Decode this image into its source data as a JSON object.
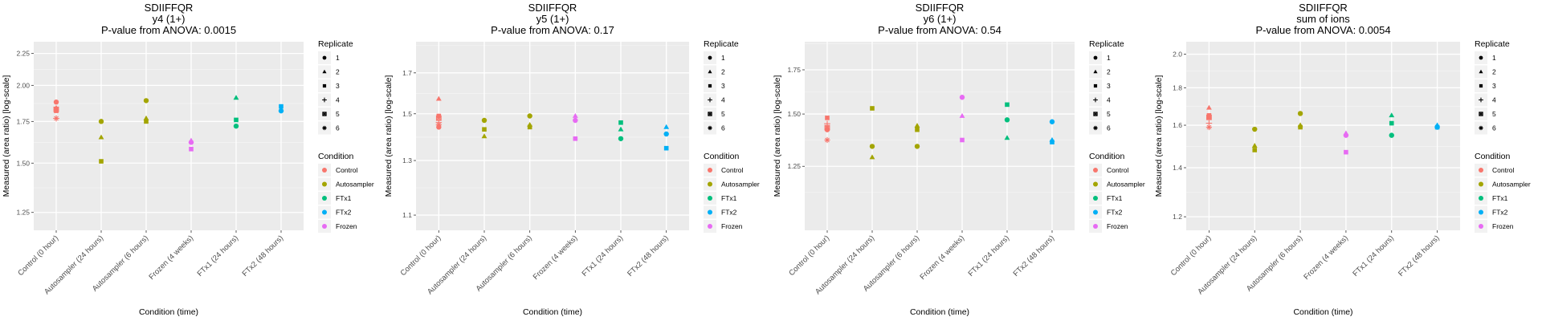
{
  "chart_data": [
    {
      "type": "scatter",
      "title": "SDIIFFQR",
      "subtitle": "y4 (1+)",
      "pvalue_text": "P-value from ANOVA: 0.0015",
      "xlabel": "Condition (time)",
      "ylabel": "Measured (area ratio) [log-scale]",
      "yscale": "log",
      "ylim": [
        1.17,
        2.35
      ],
      "yticks": [
        1.25,
        1.5,
        1.75,
        2.0,
        2.25
      ],
      "ytick_labels": [
        "1.25",
        "1.50",
        "1.75",
        "2.00",
        "2.25"
      ],
      "grid": true,
      "categories": [
        "Control (0 hour)",
        "Autosampler (24 hours)",
        "Autosampler (6 hours)",
        "Frozen (4 weeks)",
        "FTx1 (24 hours)",
        "FTx2 (48 hours)"
      ],
      "points": [
        {
          "x": 0,
          "y": 1.88,
          "replicate": "1",
          "condition": "Control"
        },
        {
          "x": 0,
          "y": 1.84,
          "replicate": "2",
          "condition": "Control"
        },
        {
          "x": 0,
          "y": 1.82,
          "replicate": "3",
          "condition": "Control"
        },
        {
          "x": 0,
          "y": 1.77,
          "replicate": "4",
          "condition": "Control"
        },
        {
          "x": 0,
          "y": 1.83,
          "replicate": "5",
          "condition": "Control"
        },
        {
          "x": 0,
          "y": 1.77,
          "replicate": "6",
          "condition": "Control"
        },
        {
          "x": 1,
          "y": 1.75,
          "replicate": "1",
          "condition": "Autosampler"
        },
        {
          "x": 1,
          "y": 1.65,
          "replicate": "2",
          "condition": "Autosampler"
        },
        {
          "x": 1,
          "y": 1.51,
          "replicate": "3",
          "condition": "Autosampler"
        },
        {
          "x": 2,
          "y": 1.89,
          "replicate": "1",
          "condition": "Autosampler"
        },
        {
          "x": 2,
          "y": 1.77,
          "replicate": "2",
          "condition": "Autosampler"
        },
        {
          "x": 2,
          "y": 1.75,
          "replicate": "3",
          "condition": "Autosampler"
        },
        {
          "x": 3,
          "y": 1.62,
          "replicate": "1",
          "condition": "Frozen"
        },
        {
          "x": 3,
          "y": 1.63,
          "replicate": "2",
          "condition": "Frozen"
        },
        {
          "x": 3,
          "y": 1.58,
          "replicate": "3",
          "condition": "Frozen"
        },
        {
          "x": 4,
          "y": 1.72,
          "replicate": "1",
          "condition": "FTx1"
        },
        {
          "x": 4,
          "y": 1.91,
          "replicate": "2",
          "condition": "FTx1"
        },
        {
          "x": 4,
          "y": 1.76,
          "replicate": "3",
          "condition": "FTx1"
        },
        {
          "x": 5,
          "y": 1.82,
          "replicate": "1",
          "condition": "FTx2"
        },
        {
          "x": 5,
          "y": 1.85,
          "replicate": "3",
          "condition": "FTx2"
        }
      ]
    },
    {
      "type": "scatter",
      "title": "SDIIFFQR",
      "subtitle": "y5 (1+)",
      "pvalue_text": "P-value from ANOVA: 0.17",
      "xlabel": "Condition (time)",
      "ylabel": "Measured (area ratio) [log-scale]",
      "yscale": "log",
      "ylim": [
        1.05,
        1.87
      ],
      "yticks": [
        1.1,
        1.3,
        1.5,
        1.7
      ],
      "ytick_labels": [
        "1.1",
        "1.3",
        "1.5",
        "1.7"
      ],
      "grid": true,
      "categories": [
        "Control (0 hour)",
        "Autosampler (24 hours)",
        "Autosampler (6 hours)",
        "Frozen (4 weeks)",
        "FTx1 (24 hours)",
        "FTx2 (48 hours)"
      ],
      "points": [
        {
          "x": 0,
          "y": 1.44,
          "replicate": "1",
          "condition": "Control"
        },
        {
          "x": 0,
          "y": 1.57,
          "replicate": "2",
          "condition": "Control"
        },
        {
          "x": 0,
          "y": 1.49,
          "replicate": "3",
          "condition": "Control"
        },
        {
          "x": 0,
          "y": 1.46,
          "replicate": "4",
          "condition": "Control"
        },
        {
          "x": 0,
          "y": 1.48,
          "replicate": "5",
          "condition": "Control"
        },
        {
          "x": 0,
          "y": 1.45,
          "replicate": "6",
          "condition": "Control"
        },
        {
          "x": 1,
          "y": 1.47,
          "replicate": "1",
          "condition": "Autosampler"
        },
        {
          "x": 1,
          "y": 1.4,
          "replicate": "2",
          "condition": "Autosampler"
        },
        {
          "x": 1,
          "y": 1.43,
          "replicate": "3",
          "condition": "Autosampler"
        },
        {
          "x": 2,
          "y": 1.49,
          "replicate": "1",
          "condition": "Autosampler"
        },
        {
          "x": 2,
          "y": 1.45,
          "replicate": "2",
          "condition": "Autosampler"
        },
        {
          "x": 2,
          "y": 1.44,
          "replicate": "3",
          "condition": "Autosampler"
        },
        {
          "x": 3,
          "y": 1.47,
          "replicate": "1",
          "condition": "Frozen"
        },
        {
          "x": 3,
          "y": 1.49,
          "replicate": "2",
          "condition": "Frozen"
        },
        {
          "x": 3,
          "y": 1.39,
          "replicate": "3",
          "condition": "Frozen"
        },
        {
          "x": 4,
          "y": 1.39,
          "replicate": "1",
          "condition": "FTx1"
        },
        {
          "x": 4,
          "y": 1.43,
          "replicate": "2",
          "condition": "FTx1"
        },
        {
          "x": 4,
          "y": 1.46,
          "replicate": "3",
          "condition": "FTx1"
        },
        {
          "x": 5,
          "y": 1.41,
          "replicate": "1",
          "condition": "FTx2"
        },
        {
          "x": 5,
          "y": 1.44,
          "replicate": "2",
          "condition": "FTx2"
        },
        {
          "x": 5,
          "y": 1.35,
          "replicate": "3",
          "condition": "FTx2"
        }
      ]
    },
    {
      "type": "scatter",
      "title": "SDIIFFQR",
      "subtitle": "y6 (1+)",
      "pvalue_text": "P-value from ANOVA: 0.54",
      "xlabel": "Condition (time)",
      "ylabel": "Measured (area ratio) [log-scale]",
      "yscale": "log",
      "ylim": [
        1.0,
        1.93
      ],
      "yticks": [
        1.25,
        1.5,
        1.75
      ],
      "ytick_labels": [
        "1.25",
        "1.50",
        "1.75"
      ],
      "grid": true,
      "categories": [
        "Control (0 hour)",
        "Autosampler (24 hours)",
        "Autosampler (6 hours)",
        "Frozen (4 weeks)",
        "FTx1 (24 hours)",
        "FTx2 (48 hours)"
      ],
      "points": [
        {
          "x": 0,
          "y": 1.42,
          "replicate": "1",
          "condition": "Control"
        },
        {
          "x": 0,
          "y": 1.43,
          "replicate": "2",
          "condition": "Control"
        },
        {
          "x": 0,
          "y": 1.48,
          "replicate": "3",
          "condition": "Control"
        },
        {
          "x": 0,
          "y": 1.45,
          "replicate": "4",
          "condition": "Control"
        },
        {
          "x": 0,
          "y": 1.43,
          "replicate": "5",
          "condition": "Control"
        },
        {
          "x": 0,
          "y": 1.37,
          "replicate": "6",
          "condition": "Control"
        },
        {
          "x": 1,
          "y": 1.34,
          "replicate": "1",
          "condition": "Autosampler"
        },
        {
          "x": 1,
          "y": 1.29,
          "replicate": "2",
          "condition": "Autosampler"
        },
        {
          "x": 1,
          "y": 1.53,
          "replicate": "3",
          "condition": "Autosampler"
        },
        {
          "x": 2,
          "y": 1.34,
          "replicate": "1",
          "condition": "Autosampler"
        },
        {
          "x": 2,
          "y": 1.44,
          "replicate": "2",
          "condition": "Autosampler"
        },
        {
          "x": 2,
          "y": 1.42,
          "replicate": "3",
          "condition": "Autosampler"
        },
        {
          "x": 3,
          "y": 1.59,
          "replicate": "1",
          "condition": "Frozen"
        },
        {
          "x": 3,
          "y": 1.49,
          "replicate": "2",
          "condition": "Frozen"
        },
        {
          "x": 3,
          "y": 1.37,
          "replicate": "3",
          "condition": "Frozen"
        },
        {
          "x": 4,
          "y": 1.47,
          "replicate": "1",
          "condition": "FTx1"
        },
        {
          "x": 4,
          "y": 1.38,
          "replicate": "2",
          "condition": "FTx1"
        },
        {
          "x": 4,
          "y": 1.55,
          "replicate": "3",
          "condition": "FTx1"
        },
        {
          "x": 5,
          "y": 1.46,
          "replicate": "1",
          "condition": "FTx2"
        },
        {
          "x": 5,
          "y": 1.37,
          "replicate": "2",
          "condition": "FTx2"
        },
        {
          "x": 5,
          "y": 1.36,
          "replicate": "3",
          "condition": "FTx2"
        }
      ]
    },
    {
      "type": "scatter",
      "title": "SDIIFFQR",
      "subtitle": "sum of ions",
      "pvalue_text": "P-value from ANOVA: 0.0054",
      "xlabel": "Condition (time)",
      "ylabel": "Measured (area ratio) [log-scale]",
      "yscale": "log",
      "ylim": [
        1.15,
        2.08
      ],
      "yticks": [
        1.2,
        1.4,
        1.6,
        1.8,
        2.0
      ],
      "ytick_labels": [
        "1.2",
        "1.4",
        "1.6",
        "1.8",
        "2.0"
      ],
      "grid": true,
      "categories": [
        "Control (0 hour)",
        "Autosampler (24 hours)",
        "Autosampler (6 hours)",
        "Frozen (4 weeks)",
        "FTx1 (24 hours)",
        "FTx2 (48 hours)"
      ],
      "points": [
        {
          "x": 0,
          "y": 1.64,
          "replicate": "1",
          "condition": "Control"
        },
        {
          "x": 0,
          "y": 1.69,
          "replicate": "2",
          "condition": "Control"
        },
        {
          "x": 0,
          "y": 1.65,
          "replicate": "3",
          "condition": "Control"
        },
        {
          "x": 0,
          "y": 1.61,
          "replicate": "4",
          "condition": "Control"
        },
        {
          "x": 0,
          "y": 1.64,
          "replicate": "5",
          "condition": "Control"
        },
        {
          "x": 0,
          "y": 1.59,
          "replicate": "6",
          "condition": "Control"
        },
        {
          "x": 1,
          "y": 1.58,
          "replicate": "1",
          "condition": "Autosampler"
        },
        {
          "x": 1,
          "y": 1.5,
          "replicate": "2",
          "condition": "Autosampler"
        },
        {
          "x": 1,
          "y": 1.48,
          "replicate": "3",
          "condition": "Autosampler"
        },
        {
          "x": 2,
          "y": 1.66,
          "replicate": "1",
          "condition": "Autosampler"
        },
        {
          "x": 2,
          "y": 1.6,
          "replicate": "2",
          "condition": "Autosampler"
        },
        {
          "x": 2,
          "y": 1.59,
          "replicate": "3",
          "condition": "Autosampler"
        },
        {
          "x": 3,
          "y": 1.55,
          "replicate": "1",
          "condition": "Frozen"
        },
        {
          "x": 3,
          "y": 1.56,
          "replicate": "2",
          "condition": "Frozen"
        },
        {
          "x": 3,
          "y": 1.47,
          "replicate": "3",
          "condition": "Frozen"
        },
        {
          "x": 4,
          "y": 1.55,
          "replicate": "1",
          "condition": "FTx1"
        },
        {
          "x": 4,
          "y": 1.65,
          "replicate": "2",
          "condition": "FTx1"
        },
        {
          "x": 4,
          "y": 1.61,
          "replicate": "3",
          "condition": "FTx1"
        },
        {
          "x": 5,
          "y": 1.59,
          "replicate": "1",
          "condition": "FTx2"
        },
        {
          "x": 5,
          "y": 1.6,
          "replicate": "2",
          "condition": "FTx2"
        },
        {
          "x": 5,
          "y": 1.59,
          "replicate": "3",
          "condition": "FTx2"
        }
      ]
    }
  ],
  "legend": {
    "replicate_title": "Replicate",
    "replicates": [
      {
        "label": "1",
        "shape": "circle"
      },
      {
        "label": "2",
        "shape": "triangle"
      },
      {
        "label": "3",
        "shape": "square"
      },
      {
        "label": "4",
        "shape": "plus"
      },
      {
        "label": "5",
        "shape": "boxed-x"
      },
      {
        "label": "6",
        "shape": "asterisk"
      }
    ],
    "condition_title": "Condition",
    "conditions": [
      {
        "label": "Control",
        "color": "#F8766D"
      },
      {
        "label": "Autosampler",
        "color": "#A3A500"
      },
      {
        "label": "FTx1",
        "color": "#00BF7D"
      },
      {
        "label": "FTx2",
        "color": "#00B0F6"
      },
      {
        "label": "Frozen",
        "color": "#E76BF3"
      }
    ]
  }
}
